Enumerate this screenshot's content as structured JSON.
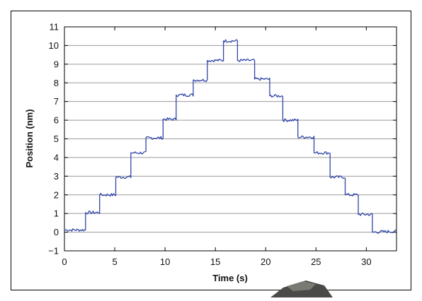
{
  "chart_data": {
    "type": "line",
    "title": "",
    "xlabel": "Time (s)",
    "ylabel": "Position (nm)",
    "xlim": [
      0,
      33
    ],
    "ylim": [
      -1,
      11
    ],
    "xticks": [
      0,
      5,
      10,
      15,
      20,
      25,
      30
    ],
    "yticks": [
      -1,
      0,
      1,
      2,
      3,
      4,
      5,
      6,
      7,
      8,
      9,
      10,
      11
    ],
    "ytick_labels": [
      "−1",
      "0",
      "1",
      "2",
      "3",
      "4",
      "5",
      "6",
      "7",
      "8",
      "9",
      "10",
      "11"
    ],
    "grid": "horizontal",
    "legend": "none",
    "series": [
      {
        "color": "#3046a8",
        "x": [
          0,
          2.1,
          2.1,
          3.5,
          3.5,
          5.1,
          5.1,
          6.6,
          6.6,
          8.1,
          8.1,
          9.8,
          9.8,
          11.1,
          11.1,
          12.8,
          12.8,
          14.2,
          14.2,
          15.8,
          15.8,
          17.2,
          17.2,
          18.9,
          18.9,
          20.4,
          20.4,
          21.7,
          21.7,
          23.2,
          23.2,
          24.8,
          24.8,
          26.4,
          26.4,
          27.9,
          27.9,
          29.2,
          29.2,
          30.6,
          30.6,
          33
        ],
        "y": [
          0.12,
          0.12,
          1.05,
          1.05,
          2.0,
          2.0,
          2.95,
          2.95,
          4.25,
          4.25,
          5.05,
          5.05,
          6.05,
          6.05,
          7.35,
          7.35,
          8.15,
          8.15,
          9.2,
          9.2,
          10.25,
          10.25,
          9.2,
          9.2,
          8.2,
          8.2,
          7.3,
          7.3,
          6.0,
          6.0,
          5.1,
          5.1,
          4.25,
          4.25,
          2.95,
          2.95,
          2.0,
          2.0,
          0.95,
          0.95,
          0.0,
          0.05
        ]
      }
    ]
  },
  "style": {
    "line_color": "#3046a8",
    "grid_color": "#9a9a9a",
    "frame_color": "#000000"
  }
}
